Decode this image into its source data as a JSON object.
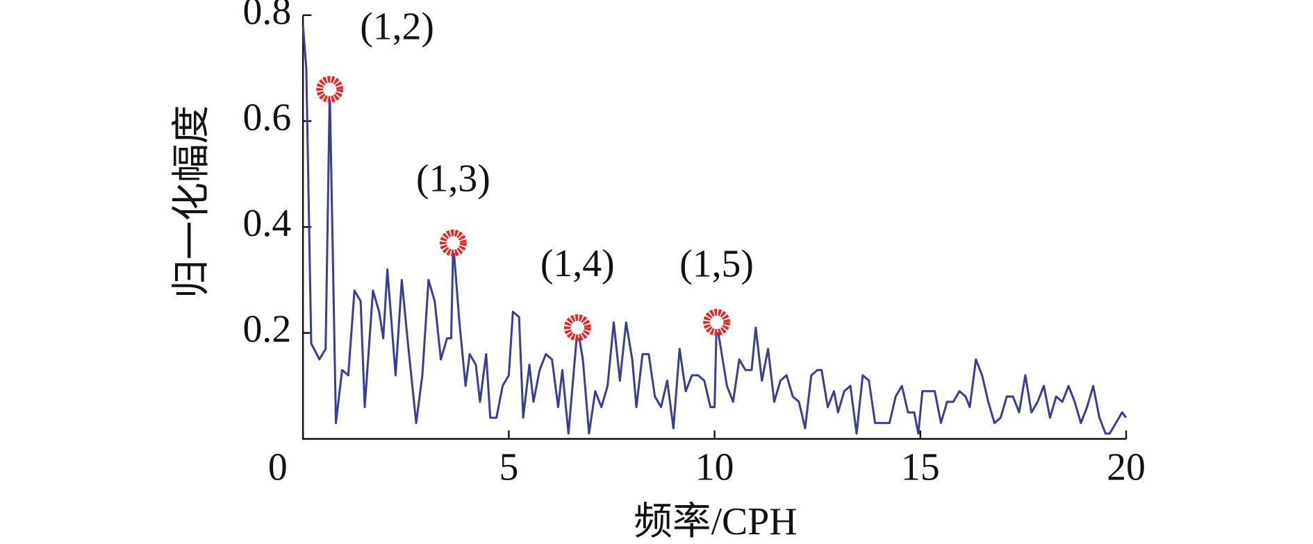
{
  "chart_data": {
    "type": "line",
    "xlabel": "频率/CPH",
    "ylabel": "归一化幅度",
    "xlim": [
      0,
      20
    ],
    "ylim": [
      0,
      0.8
    ],
    "xticks": [
      0,
      5,
      10,
      15,
      20
    ],
    "yticks": [
      0.2,
      0.4,
      0.6,
      0.8
    ],
    "series": [
      {
        "color": "#3a3f96",
        "x": [
          0,
          0.08,
          0.2,
          0.4,
          0.55,
          0.65,
          0.8,
          0.95,
          1.1,
          1.25,
          1.4,
          1.5,
          1.7,
          1.85,
          1.95,
          2.05,
          2.25,
          2.4,
          2.55,
          2.75,
          2.9,
          3.05,
          3.2,
          3.35,
          3.5,
          3.6,
          3.65,
          3.8,
          3.95,
          4.05,
          4.2,
          4.3,
          4.45,
          4.55,
          4.7,
          4.85,
          5.0,
          5.1,
          5.25,
          5.35,
          5.5,
          5.6,
          5.75,
          5.9,
          6.05,
          6.2,
          6.3,
          6.45,
          6.67,
          6.8,
          6.95,
          7.1,
          7.25,
          7.4,
          7.55,
          7.7,
          7.85,
          8.0,
          8.1,
          8.25,
          8.4,
          8.55,
          8.7,
          8.85,
          9.0,
          9.15,
          9.3,
          9.45,
          9.6,
          9.75,
          9.9,
          10.0,
          10.05,
          10.3,
          10.45,
          10.6,
          10.75,
          10.9,
          11.0,
          11.15,
          11.3,
          11.45,
          11.6,
          11.75,
          11.9,
          12.05,
          12.2,
          12.35,
          12.5,
          12.6,
          12.75,
          12.9,
          13.0,
          13.15,
          13.3,
          13.45,
          13.6,
          13.75,
          13.9,
          14.1,
          14.25,
          14.4,
          14.55,
          14.7,
          14.85,
          14.95,
          15.05,
          15.2,
          15.35,
          15.5,
          15.65,
          15.8,
          15.95,
          16.1,
          16.2,
          16.35,
          16.5,
          16.65,
          16.8,
          16.95,
          17.1,
          17.25,
          17.4,
          17.55,
          17.7,
          17.85,
          18.0,
          18.15,
          18.3,
          18.45,
          18.6,
          18.75,
          18.9,
          19.05,
          19.2,
          19.35,
          19.5,
          19.6,
          19.75,
          19.9,
          20.0
        ],
        "values": [
          0.78,
          0.7,
          0.18,
          0.15,
          0.17,
          0.66,
          0.03,
          0.13,
          0.12,
          0.28,
          0.26,
          0.06,
          0.28,
          0.24,
          0.19,
          0.32,
          0.12,
          0.3,
          0.18,
          0.03,
          0.12,
          0.3,
          0.26,
          0.15,
          0.19,
          0.19,
          0.37,
          0.22,
          0.1,
          0.16,
          0.14,
          0.07,
          0.16,
          0.04,
          0.04,
          0.1,
          0.12,
          0.24,
          0.23,
          0.04,
          0.14,
          0.07,
          0.13,
          0.16,
          0.15,
          0.06,
          0.13,
          0.01,
          0.21,
          0.15,
          0.01,
          0.09,
          0.06,
          0.1,
          0.22,
          0.11,
          0.22,
          0.15,
          0.06,
          0.16,
          0.16,
          0.08,
          0.06,
          0.11,
          0.02,
          0.17,
          0.09,
          0.12,
          0.12,
          0.11,
          0.06,
          0.06,
          0.22,
          0.1,
          0.07,
          0.15,
          0.13,
          0.13,
          0.21,
          0.11,
          0.17,
          0.07,
          0.11,
          0.12,
          0.08,
          0.07,
          0.02,
          0.12,
          0.13,
          0.13,
          0.06,
          0.09,
          0.05,
          0.09,
          0.1,
          0.01,
          0.12,
          0.11,
          0.03,
          0.03,
          0.03,
          0.08,
          0.1,
          0.05,
          0.05,
          0.01,
          0.09,
          0.09,
          0.09,
          0.03,
          0.07,
          0.07,
          0.09,
          0.08,
          0.06,
          0.15,
          0.12,
          0.07,
          0.03,
          0.04,
          0.08,
          0.08,
          0.05,
          0.12,
          0.05,
          0.07,
          0.1,
          0.04,
          0.08,
          0.07,
          0.1,
          0.07,
          0.03,
          0.06,
          0.1,
          0.04,
          0.01,
          0.01,
          0.03,
          0.05,
          0.04
        ]
      }
    ],
    "annotations": [
      {
        "text": "(1,2)",
        "x": 0.65,
        "y": 0.66,
        "color": "#e8262a"
      },
      {
        "text": "(1,3)",
        "x": 3.65,
        "y": 0.37,
        "color": "#e8262a"
      },
      {
        "text": "(1,4)",
        "x": 6.67,
        "y": 0.21,
        "color": "#e8262a"
      },
      {
        "text": "(1,5)",
        "x": 10.05,
        "y": 0.22,
        "color": "#e8262a"
      }
    ]
  }
}
